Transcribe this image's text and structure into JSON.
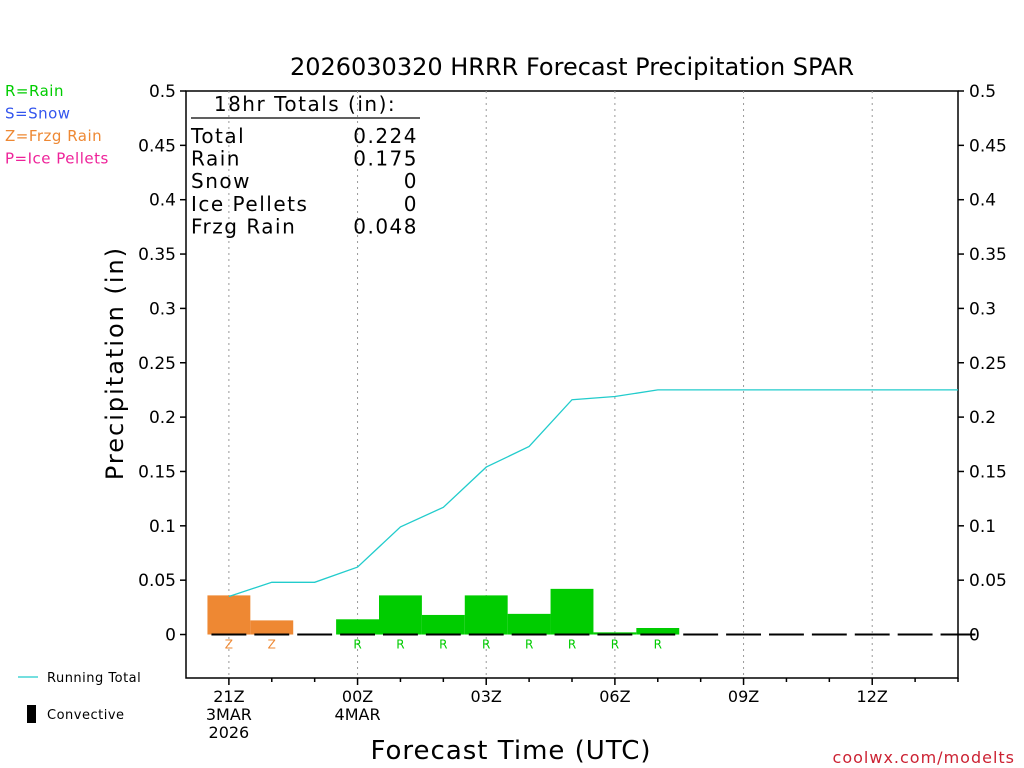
{
  "chart_data": {
    "type": "bar",
    "title": "2026030320 HRRR Forecast Precipitation SPAR",
    "xlabel": "Forecast Time (UTC)",
    "ylabel": "Precipitation (in)",
    "ylim": [
      -0.04,
      0.5
    ],
    "y_ticks": [
      "0",
      "0.05",
      "0.1",
      "0.15",
      "0.2",
      "0.25",
      "0.3",
      "0.35",
      "0.4",
      "0.45",
      "0.5"
    ],
    "x_ticks": [
      {
        "hour": 0,
        "lines": [
          "21Z",
          "3MAR",
          "2026"
        ]
      },
      {
        "hour": 3,
        "lines": [
          "00Z",
          "4MAR"
        ]
      },
      {
        "hour": 6,
        "lines": [
          "03Z"
        ]
      },
      {
        "hour": 9,
        "lines": [
          "06Z"
        ]
      },
      {
        "hour": 12,
        "lines": [
          "09Z"
        ]
      },
      {
        "hour": 15,
        "lines": [
          "12Z"
        ]
      }
    ],
    "x_range_hours": [
      -1,
      17
    ],
    "grid": "vertical dotted",
    "type_legend": [
      {
        "label": "R=Rain",
        "color": "#00cc00"
      },
      {
        "label": "S=Snow",
        "color": "#3355ee"
      },
      {
        "label": "Z=Frzg Rain",
        "color": "#ee8833"
      },
      {
        "label": "P=Ice Pellets",
        "color": "#ee2299"
      }
    ],
    "series_legend": [
      {
        "label": "Running Total",
        "color": "#22cccc"
      },
      {
        "label": "Convective",
        "color": "#000000"
      }
    ],
    "totals": {
      "header": "18hr Totals (in):",
      "rows": [
        {
          "label": "Total",
          "value": "0.224"
        },
        {
          "label": "Rain",
          "value": "0.175"
        },
        {
          "label": "Snow",
          "value": "0"
        },
        {
          "label": "Ice Pellets",
          "value": "0"
        },
        {
          "label": "Frzg Rain",
          "value": "0.048"
        }
      ]
    },
    "bars": [
      {
        "hour": 0,
        "value": 0.036,
        "type": "Z"
      },
      {
        "hour": 1,
        "value": 0.013,
        "type": "Z"
      },
      {
        "hour": 2,
        "value": 0.0,
        "type": ""
      },
      {
        "hour": 3,
        "value": 0.014,
        "type": "R"
      },
      {
        "hour": 4,
        "value": 0.036,
        "type": "R"
      },
      {
        "hour": 5,
        "value": 0.018,
        "type": "R"
      },
      {
        "hour": 6,
        "value": 0.036,
        "type": "R"
      },
      {
        "hour": 7,
        "value": 0.019,
        "type": "R"
      },
      {
        "hour": 8,
        "value": 0.042,
        "type": "R"
      },
      {
        "hour": 9,
        "value": 0.002,
        "type": "R"
      },
      {
        "hour": 10,
        "value": 0.006,
        "type": "R"
      },
      {
        "hour": 11,
        "value": 0.0,
        "type": ""
      },
      {
        "hour": 12,
        "value": 0.0,
        "type": ""
      },
      {
        "hour": 13,
        "value": 0.0,
        "type": ""
      },
      {
        "hour": 14,
        "value": 0.0,
        "type": ""
      },
      {
        "hour": 15,
        "value": 0.0,
        "type": ""
      },
      {
        "hour": 16,
        "value": 0.0,
        "type": ""
      },
      {
        "hour": 17,
        "value": 0.0,
        "type": ""
      }
    ],
    "running_total": {
      "name": "Running Total",
      "x": [
        0,
        1,
        2,
        3,
        4,
        5,
        6,
        7,
        8,
        9,
        10,
        11,
        12,
        13,
        14,
        15,
        16,
        17
      ],
      "values": [
        0.035,
        0.048,
        0.048,
        0.062,
        0.099,
        0.117,
        0.154,
        0.173,
        0.216,
        0.219,
        0.225,
        0.225,
        0.225,
        0.225,
        0.225,
        0.225,
        0.225,
        0.225
      ]
    },
    "type_colors": {
      "R": "#00cc00",
      "S": "#3355ee",
      "Z": "#ee8833",
      "P": "#ee2299"
    }
  },
  "footer": {
    "credit": "coolwx.com/modelts"
  }
}
